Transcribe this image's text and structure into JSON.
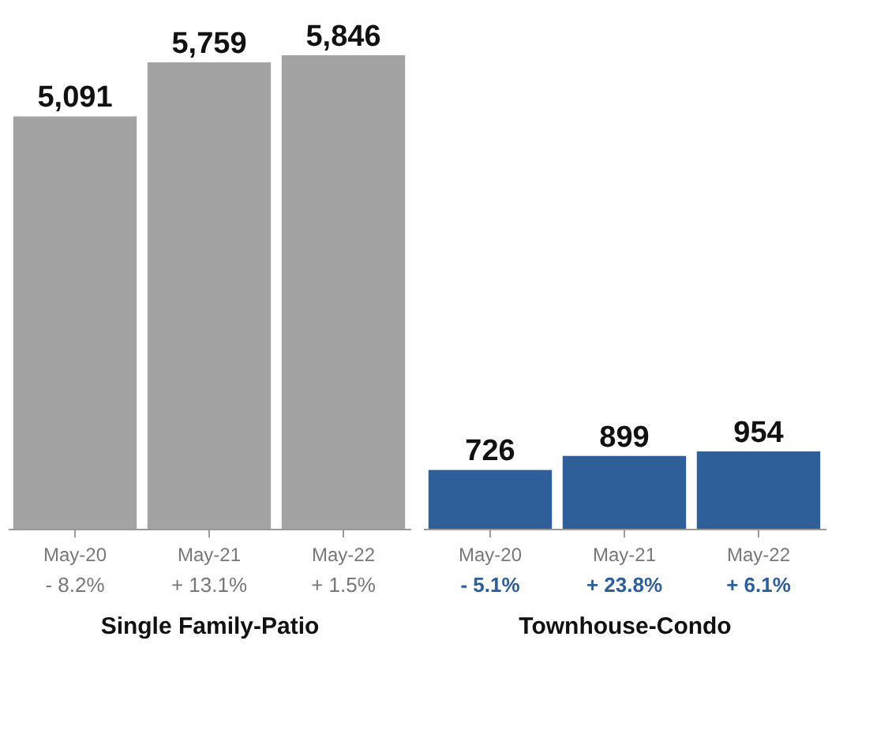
{
  "chart_data": [
    {
      "type": "bar",
      "categories": [
        "May-20",
        "May-21",
        "May-22"
      ],
      "values": [
        5091,
        5759,
        5846
      ],
      "color": "#a3a3a3",
      "value_labels": [
        "5,091",
        "5,759",
        "5,846"
      ],
      "xlabel": "Single Family-Patio",
      "annotations": [
        "- 8.2%",
        "+ 13.1%",
        "+ 1.5%"
      ]
    },
    {
      "type": "bar",
      "categories": [
        "May-20",
        "May-21",
        "May-22"
      ],
      "values": [
        726,
        899,
        954
      ],
      "color": "#2f5f98",
      "value_labels": [
        "726",
        "899",
        "954"
      ],
      "xlabel": "Townhouse-Condo",
      "annotations": [
        "- 5.1%",
        "+ 23.8%",
        "+ 6.1%"
      ]
    }
  ]
}
